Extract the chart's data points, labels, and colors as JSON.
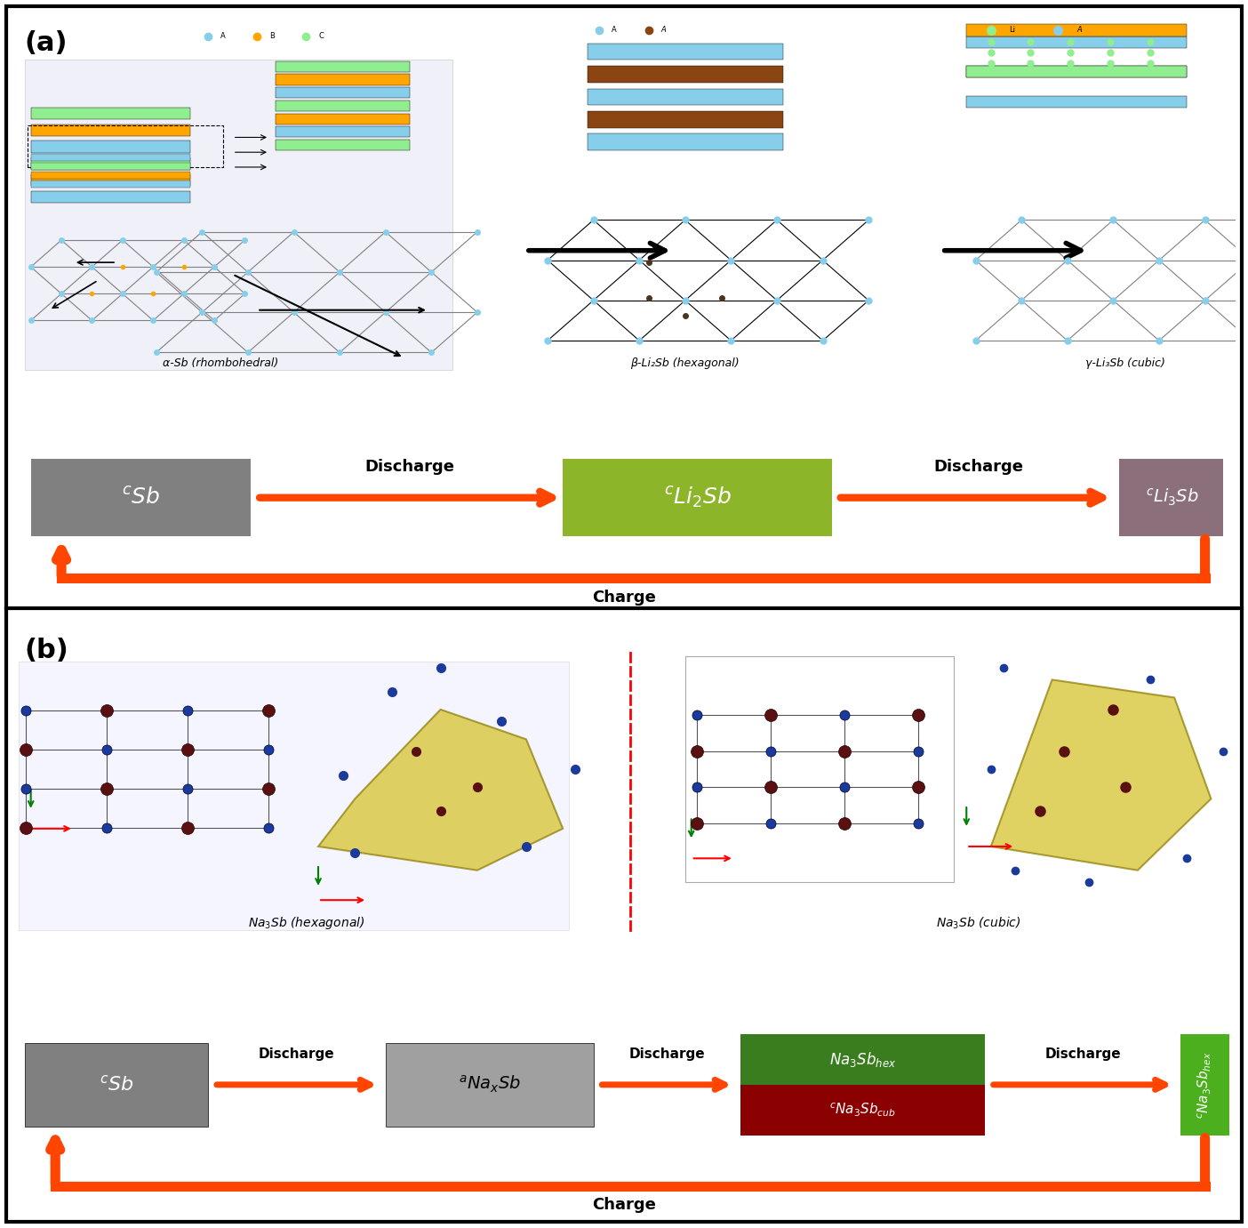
{
  "fig_width": 14.04,
  "fig_height": 13.81,
  "dpi": 100,
  "background_color": "#ffffff",
  "border_color": "#000000",
  "panel_a": {
    "label": "(a)",
    "label_fontsize": 22,
    "label_fontweight": "bold",
    "panel_bg": "#ffffff",
    "box1_label": "$^cSb$",
    "box1_color": "#808080",
    "box2_label": "$^cLi_2Sb$",
    "box2_color": "#8db529",
    "box3_label": "$^cLi_3Sb$",
    "box3_color": "#8b6f7a",
    "discharge1_label": "Discharge",
    "discharge2_label": "Discharge",
    "charge_label": "Charge",
    "arrow_color": "#ff4500",
    "discharge_color": "#000000",
    "crystal1_label": "α-Sb (rhombohedral)",
    "crystal2_label": "β-Li₂Sb (hexagonal)",
    "crystal3_label": "γ-Li₃Sb (cubic)"
  },
  "panel_b": {
    "label": "(b)",
    "label_fontsize": 22,
    "label_fontweight": "bold",
    "panel_bg": "#ffffff",
    "box1_label": "$^cSb$",
    "box1_color": "#808080",
    "box2_label": "$^aNa_xSb$",
    "box2_color": "#a0a0a0",
    "box3a_label": "$Na_3Sb_{hex}$",
    "box3a_color": "#3a7d1e",
    "box3b_label": "$^cNa_3Sb_{cub}$",
    "box3b_color": "#8b0000",
    "box4_label": "$^cNa_3Sb_{hex}$",
    "box4_color": "#4caf1e",
    "discharge1_label": "Discharge",
    "discharge2_label": "Discharge",
    "discharge3_label": "Discharge",
    "charge_label": "Charge",
    "arrow_color": "#ff4500",
    "crystal1_label": "$Na_3Sb$ (hexagonal)",
    "crystal2_label": "$Na_3Sb$ (cubic)"
  }
}
